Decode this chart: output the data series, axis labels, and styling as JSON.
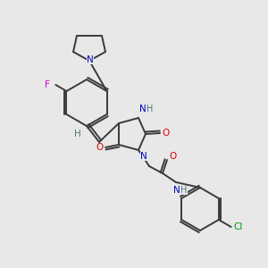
{
  "background_color": "#e8e8e8",
  "bond_color": "#3a3a3a",
  "atom_colors": {
    "N": "#0000cc",
    "O": "#dd0000",
    "F": "#cc00cc",
    "Cl": "#009900",
    "H": "#4a7a7a",
    "C": "#3a3a3a"
  },
  "figsize": [
    3.0,
    3.0
  ],
  "dpi": 100
}
